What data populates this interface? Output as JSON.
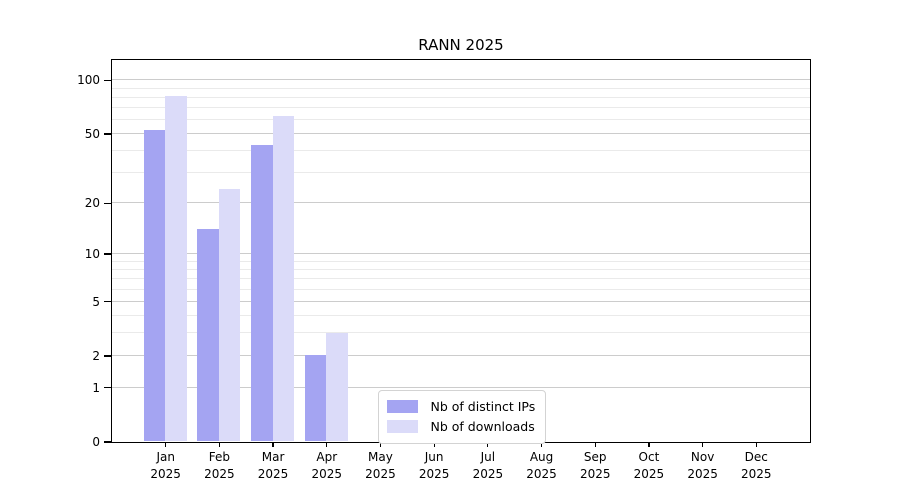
{
  "chart_data": {
    "type": "bar",
    "title": "RANN 2025",
    "categories": [
      "Jan 2025",
      "Feb 2025",
      "Mar 2025",
      "Apr 2025",
      "May 2025",
      "Jun 2025",
      "Jul 2025",
      "Aug 2025",
      "Sep 2025",
      "Oct 2025",
      "Nov 2025",
      "Dec 2025"
    ],
    "series": [
      {
        "name": "Nb of distinct IPs",
        "color": "#a4a4f2",
        "values": [
          52,
          14,
          43,
          2,
          0,
          0,
          0,
          0,
          0,
          0,
          0,
          0
        ]
      },
      {
        "name": "Nb of downloads",
        "color": "#dbdbf9",
        "values": [
          81,
          24,
          63,
          3,
          0,
          0,
          0,
          0,
          0,
          0,
          0,
          0
        ]
      }
    ],
    "xlabel": "",
    "ylabel": "",
    "yscale": "log1p",
    "ylim": [
      0,
      130
    ],
    "yticks": [
      0,
      1,
      2,
      5,
      10,
      20,
      50,
      100
    ],
    "yticks_minor": [
      3,
      4,
      6,
      7,
      8,
      9,
      30,
      40,
      60,
      70,
      80,
      90
    ],
    "grid": "on",
    "legend_position": "lower-center-inside",
    "colors": {
      "grid_major": "#cccccc",
      "grid_minor": "#eaeaea",
      "spine": "#000000",
      "legend_border": "#d3d3d3",
      "background": "#ffffff"
    }
  }
}
